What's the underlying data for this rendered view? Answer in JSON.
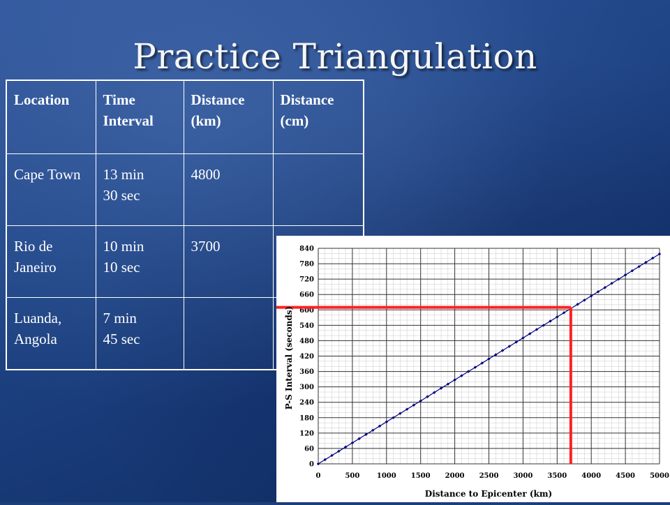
{
  "title": "Practice Triangulation",
  "table": {
    "headers": [
      "Location",
      "Time Interval",
      "Distance (km)",
      "Distance (cm)"
    ],
    "rows": [
      {
        "location": "Cape Town",
        "time_min": "13 min",
        "time_sec": "30 sec",
        "distance_km": "4800",
        "distance_cm": ""
      },
      {
        "location": "Rio de Janeiro",
        "time_min": "10 min",
        "time_sec": "10 sec",
        "distance_km": "3700",
        "distance_cm": ""
      },
      {
        "location": "Luanda, Angola",
        "time_min": "7 min",
        "time_sec": "45 sec",
        "distance_km": "",
        "distance_cm": ""
      }
    ]
  },
  "chart_data": {
    "type": "line",
    "xlabel": "Distance to Epicenter (km)",
    "ylabel": "P-S Interval (seconds)",
    "xlim": [
      0,
      5000
    ],
    "ylim": [
      0,
      840
    ],
    "x_ticks": [
      0,
      500,
      1000,
      1500,
      2000,
      2500,
      3000,
      3500,
      4000,
      4500,
      5000
    ],
    "y_ticks": [
      0,
      60,
      120,
      180,
      240,
      300,
      360,
      420,
      480,
      540,
      600,
      660,
      720,
      780,
      840
    ],
    "grid": true,
    "series": [
      {
        "slope_seconds_per_km": 0.1636,
        "x_start": 0,
        "x_end": 5000,
        "x_step": 100,
        "color": "#000080"
      }
    ],
    "reference_lines": [
      {
        "type": "horizontal",
        "y": 610,
        "x_from": 0,
        "x_to": 3700,
        "color": "#ff2020"
      },
      {
        "type": "vertical",
        "x": 3700,
        "y_from": 0,
        "y_to": 610,
        "color": "#ff2020"
      }
    ]
  }
}
